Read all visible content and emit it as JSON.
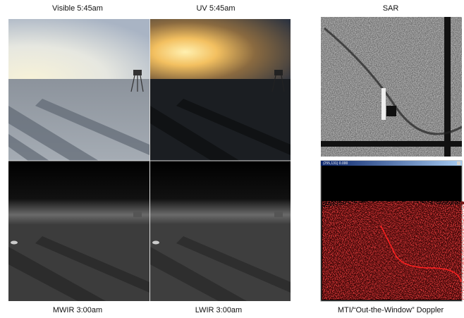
{
  "panels": [
    {
      "label": "Visible 5:45am"
    },
    {
      "label": "UV 5:45am"
    },
    {
      "label": "SAR"
    },
    {
      "label": "MWIR 3:00am"
    },
    {
      "label": "LWIR 3:00am"
    },
    {
      "label": "MTI/“Out-the-Window” Doppler",
      "window_title": "(255,131) 0.000"
    }
  ]
}
